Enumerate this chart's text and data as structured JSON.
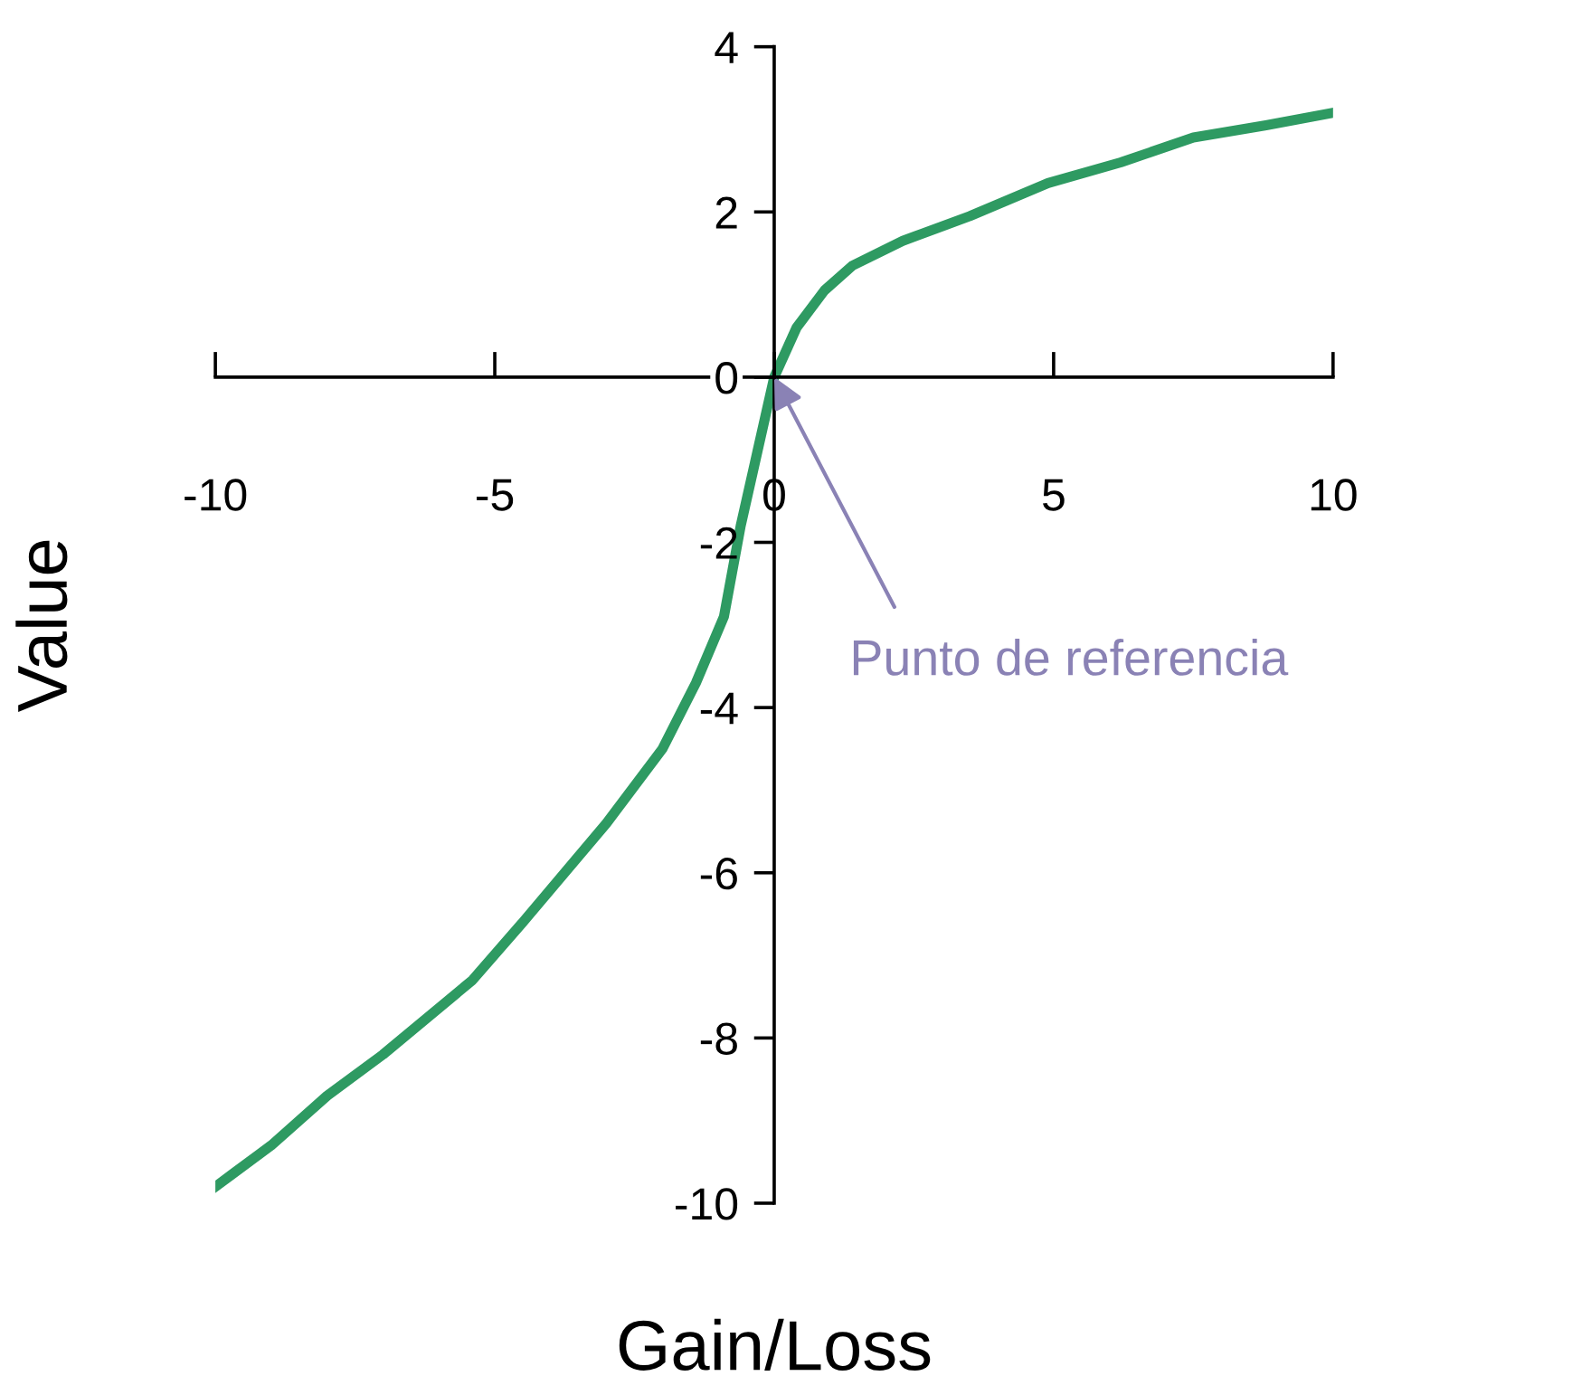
{
  "chart_data": {
    "type": "line",
    "xlabel": "Gain/Loss",
    "ylabel": "Value",
    "series": [
      {
        "color": "#2e9a62",
        "x": [
          -10,
          -9,
          -8,
          -7,
          -5.4,
          -4.5,
          -3,
          -2,
          -1.4,
          -0.9,
          -0.6,
          -0.3,
          0,
          0.4,
          0.9,
          1.4,
          2.3,
          3.5,
          4.9,
          6.2,
          7.5,
          8.8,
          10
        ],
        "values": [
          -9.8,
          -9.3,
          -8.7,
          -8.2,
          -7.3,
          -6.6,
          -5.4,
          -4.5,
          -3.7,
          -2.9,
          -1.8,
          -0.9,
          0,
          0.6,
          1.05,
          1.35,
          1.65,
          1.95,
          2.35,
          2.6,
          2.9,
          3.05,
          3.2
        ]
      }
    ],
    "xlim": [
      -10,
      10
    ],
    "ylim": [
      -10,
      4
    ],
    "xticks": [
      -10,
      -5,
      0,
      5,
      10
    ],
    "yticks": [
      -10,
      -8,
      -6,
      -4,
      -2,
      0,
      2,
      4
    ],
    "annotations": [
      {
        "text": "Punto de referencia",
        "x": 0,
        "y": 0
      }
    ],
    "grid": false,
    "legend": false,
    "marker": "none",
    "line_style": "solid"
  }
}
